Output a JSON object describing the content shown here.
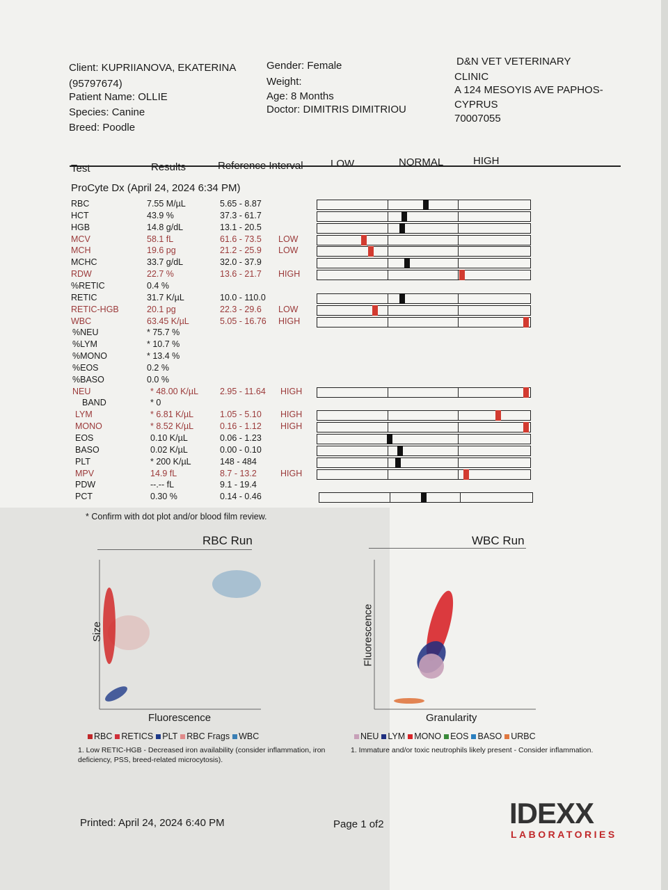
{
  "client": {
    "client": "Client: KUPRIIANOVA, EKATERINA",
    "id": "(95797674)",
    "patient": "Patient Name: OLLIE",
    "species": "Species: Canine",
    "breed": "Breed: Poodle"
  },
  "patient_info": {
    "gender": "Gender: Female",
    "weight": "Weight:",
    "age": "Age: 8 Months",
    "doctor": "Doctor: DIMITRIS DIMITRIOU"
  },
  "clinic": {
    "line1": "D&N VET VETERINARY",
    "line2": "CLINIC",
    "line3": "A 124 MESOYIS AVE PAPHOS-",
    "line4": "CYPRUS",
    "line5": "70007055"
  },
  "headers": {
    "test": "Test",
    "results": "Results",
    "ref": "Reference Interval",
    "low": "LOW",
    "normal": "NORMAL",
    "high": "HIGH"
  },
  "section": "ProCyte Dx (April 24, 2024 6:34 PM)",
  "rows": [
    {
      "test": "RBC",
      "result": "7.55 M/µL",
      "ref": "5.65 - 8.87",
      "flag": "",
      "marker": 0.51
    },
    {
      "test": "HCT",
      "result": "43.9 %",
      "ref": "37.3 - 61.7",
      "flag": "",
      "marker": 0.41
    },
    {
      "test": "HGB",
      "result": "14.8 g/dL",
      "ref": "13.1 - 20.5",
      "flag": "",
      "marker": 0.4
    },
    {
      "test": "MCV",
      "result": "58.1 fL",
      "ref": "61.6 - 73.5",
      "flag": "LOW",
      "marker": 0.22
    },
    {
      "test": "MCH",
      "result": "19.6 pg",
      "ref": "21.2 - 25.9",
      "flag": "LOW",
      "marker": 0.25
    },
    {
      "test": "MCHC",
      "result": "33.7 g/dL",
      "ref": "32.0 - 37.9",
      "flag": "",
      "marker": 0.42
    },
    {
      "test": "RDW",
      "result": "22.7 %",
      "ref": "13.6 - 21.7",
      "flag": "HIGH",
      "marker": 0.68
    },
    {
      "test": "%RETIC",
      "result": "0.4 %",
      "ref": "",
      "flag": ""
    },
    {
      "test": "RETIC",
      "result": "31.7 K/µL",
      "ref": "10.0 - 110.0",
      "flag": "",
      "marker": 0.4
    },
    {
      "test": "RETIC-HGB",
      "result": "20.1 pg",
      "ref": "22.3 - 29.6",
      "flag": "LOW",
      "marker": 0.27
    },
    {
      "test": "WBC",
      "result": "63.45 K/µL",
      "ref": "5.05 - 16.76",
      "flag": "HIGH",
      "marker": 0.98
    },
    {
      "test": "%NEU",
      "result": "* 75.7 %",
      "ref": "",
      "flag": ""
    },
    {
      "test": "%LYM",
      "result": "* 10.7 %",
      "ref": "",
      "flag": ""
    },
    {
      "test": "%MONO",
      "result": "* 13.4 %",
      "ref": "",
      "flag": ""
    },
    {
      "test": "%EOS",
      "result": "0.2 %",
      "ref": "",
      "flag": ""
    },
    {
      "test": "%BASO",
      "result": "0.0 %",
      "ref": "",
      "flag": ""
    },
    {
      "test": "NEU",
      "result": "* 48.00 K/µL",
      "ref": "2.95 - 11.64",
      "flag": "HIGH",
      "marker": 0.98
    },
    {
      "test": "BAND",
      "result": "* 0",
      "ref": "",
      "flag": ""
    },
    {
      "test": "LYM",
      "result": "* 6.81 K/µL",
      "ref": "1.05 - 5.10",
      "flag": "HIGH",
      "marker": 0.85
    },
    {
      "test": "MONO",
      "result": "* 8.52 K/µL",
      "ref": "0.16 - 1.12",
      "flag": "HIGH",
      "marker": 0.98
    },
    {
      "test": "EOS",
      "result": "0.10 K/µL",
      "ref": "0.06 - 1.23",
      "flag": "",
      "marker": 0.34
    },
    {
      "test": "BASO",
      "result": "0.02 K/µL",
      "ref": "0.00 - 0.10",
      "flag": "",
      "marker": 0.39
    },
    {
      "test": "PLT",
      "result": "* 200 K/µL",
      "ref": "148 - 484",
      "flag": "",
      "marker": 0.38
    },
    {
      "test": "MPV",
      "result": "14.9 fL",
      "ref": "8.7 - 13.2",
      "flag": "HIGH",
      "marker": 0.7
    },
    {
      "test": "PDW",
      "result": "--.-- fL",
      "ref": "9.1 - 19.4",
      "flag": ""
    },
    {
      "test": "PCT",
      "result": "0.30 %",
      "ref": "0.14 - 0.46",
      "flag": "",
      "marker": 0.49
    }
  ],
  "confirm_note": "* Confirm with dot plot and/or blood film review.",
  "rbc_run": {
    "title": "RBC Run",
    "ylabel": "Size",
    "xlabel": "Fluorescence",
    "legend": [
      {
        "label": "RBC",
        "color": "#c0282a"
      },
      {
        "label": "RETICS",
        "color": "#d0303a"
      },
      {
        "label": "PLT",
        "color": "#1f3b8a"
      },
      {
        "label": "RBC Frags",
        "color": "#e08a8a"
      },
      {
        "label": "WBC",
        "color": "#3a7fb5"
      }
    ],
    "note": "1. Low RETIC-HGB - Decreased iron availability (consider inflammation, iron deficiency, PSS, breed-related microcytosis)."
  },
  "wbc_run": {
    "title": "WBC Run",
    "ylabel": "Fluorescence",
    "xlabel": "Granularity",
    "legend": [
      {
        "label": "NEU",
        "color": "#c7a0b8"
      },
      {
        "label": "LYM",
        "color": "#1f2f80"
      },
      {
        "label": "MONO",
        "color": "#d8262a"
      },
      {
        "label": "EOS",
        "color": "#3a8a3a"
      },
      {
        "label": "BASO",
        "color": "#2a7fbf"
      },
      {
        "label": "URBC",
        "color": "#e07840"
      }
    ],
    "note": "1. Immature and/or toxic neutrophils likely present - Consider inflammation."
  },
  "footer": {
    "printed": "Printed: April 24, 2024 6:40 PM",
    "page": "Page 1 of2",
    "logo": "IDEXX",
    "logo_sub": "LABORATORIES"
  }
}
